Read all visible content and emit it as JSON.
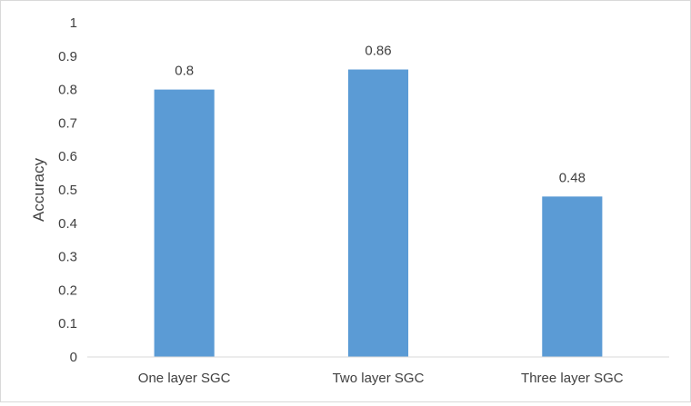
{
  "chart_data": {
    "type": "bar",
    "title": "",
    "xlabel": "",
    "ylabel": "Accuracy",
    "categories": [
      "One layer SGC",
      "Two layer SGC",
      "Three layer SGC"
    ],
    "values": [
      0.8,
      0.86,
      0.48
    ],
    "data_labels": [
      "0.8",
      "0.86",
      "0.48"
    ],
    "ylim": [
      0,
      1
    ],
    "yticks": [
      0,
      0.1,
      0.2,
      0.3,
      0.4,
      0.5,
      0.6,
      0.7,
      0.8,
      0.9,
      1
    ],
    "ytick_labels": [
      "0",
      "0.1",
      "0.2",
      "0.3",
      "0.4",
      "0.5",
      "0.6",
      "0.7",
      "0.8",
      "0.9",
      "1"
    ],
    "grid": false,
    "legend": "none",
    "bar_color": "#5b9bd5",
    "axis_color": "#d9d9d9",
    "text_color": "#404040"
  }
}
